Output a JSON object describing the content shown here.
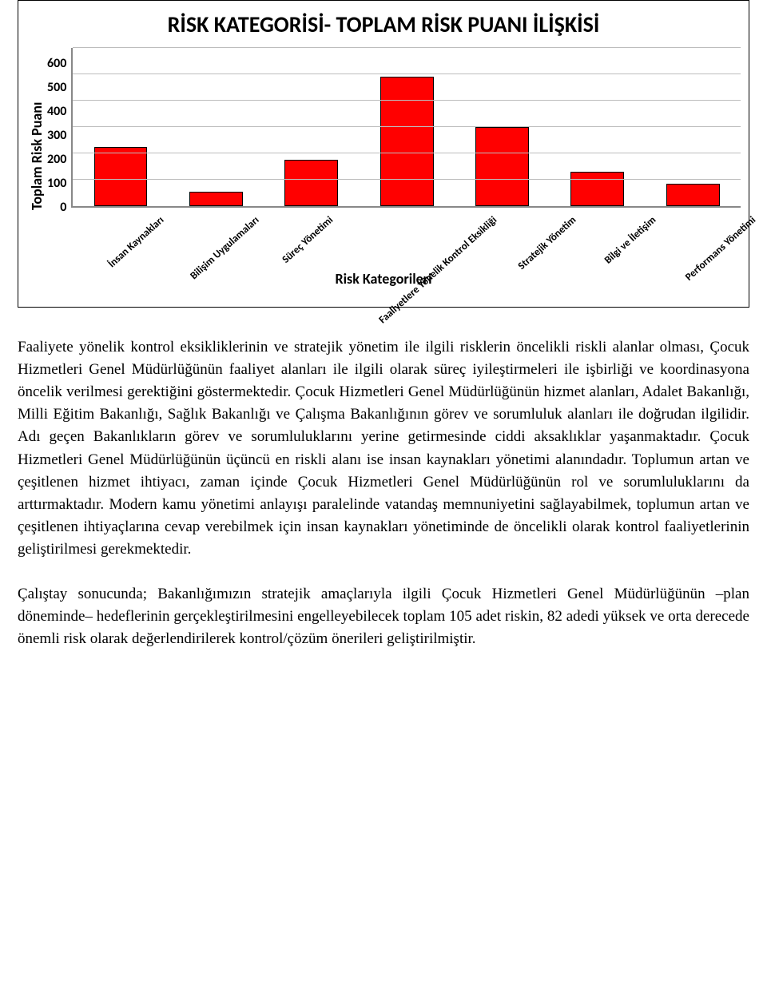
{
  "chart": {
    "type": "bar",
    "title": "RİSK KATEGORİSİ- TOPLAM RİSK PUANI İLİŞKİSİ",
    "ylabel": "Toplam Risk Puanı",
    "xlabel": "Risk Kategorileri",
    "ylim_max": 600,
    "ytick_step": 100,
    "categories": [
      "İnsan Kaynakları",
      "Bilişim Uygulamaları",
      "Süreç Yönetimi",
      "Faaliyetlere Yönelik Kontrol Eksikliği",
      "Stratejik Yönetim",
      "Bilgi ve İletişim",
      "Performans Yönetimi"
    ],
    "values": [
      225,
      55,
      175,
      490,
      300,
      130,
      85
    ],
    "bar_fill": "#ff0000",
    "bar_border": "#000000",
    "grid_color": "#bdbdbd",
    "axis_color": "#888888",
    "title_fontsize": 28,
    "label_fontsize": 18,
    "tick_fontsize": 16,
    "category_fontsize": 13,
    "font_family": "Calibri",
    "background": "#ffffff"
  },
  "text": {
    "para1": "Faaliyete yönelik kontrol eksikliklerinin ve stratejik yönetim ile ilgili risklerin öncelikli riskli alanlar olması, Çocuk Hizmetleri Genel Müdürlüğünün faaliyet alanları ile ilgili olarak süreç iyileştirmeleri ile işbirliği ve koordinasyona öncelik verilmesi gerektiğini göstermektedir. Çocuk Hizmetleri Genel Müdürlüğünün hizmet alanları, Adalet Bakanlığı, Milli Eğitim Bakanlığı, Sağlık Bakanlığı ve Çalışma Bakanlığının görev ve sorumluluk alanları ile doğrudan ilgilidir. Adı geçen Bakanlıkların görev ve sorumluluklarını yerine getirmesinde ciddi aksaklıklar yaşanmaktadır. Çocuk Hizmetleri Genel Müdürlüğünün üçüncü en riskli alanı ise insan kaynakları yönetimi alanındadır. Toplumun artan ve çeşitlenen hizmet ihtiyacı, zaman içinde Çocuk Hizmetleri Genel Müdürlüğünün rol ve sorumluluklarını da arttırmaktadır. Modern kamu yönetimi anlayışı paralelinde vatandaş memnuniyetini sağlayabilmek, toplumun artan ve çeşitlenen ihtiyaçlarına cevap verebilmek için insan kaynakları yönetiminde de öncelikli olarak kontrol faaliyetlerinin geliştirilmesi gerekmektedir.",
    "para2": "Çalıştay sonucunda; Bakanlığımızın stratejik amaçlarıyla ilgili Çocuk Hizmetleri Genel Müdürlüğünün –plan döneminde– hedeflerinin gerçekleştirilmesini engelleyebilecek toplam 105 adet riskin, 82 adedi yüksek ve orta derecede önemli risk olarak değerlendirilerek kontrol/çözüm önerileri geliştirilmiştir."
  }
}
